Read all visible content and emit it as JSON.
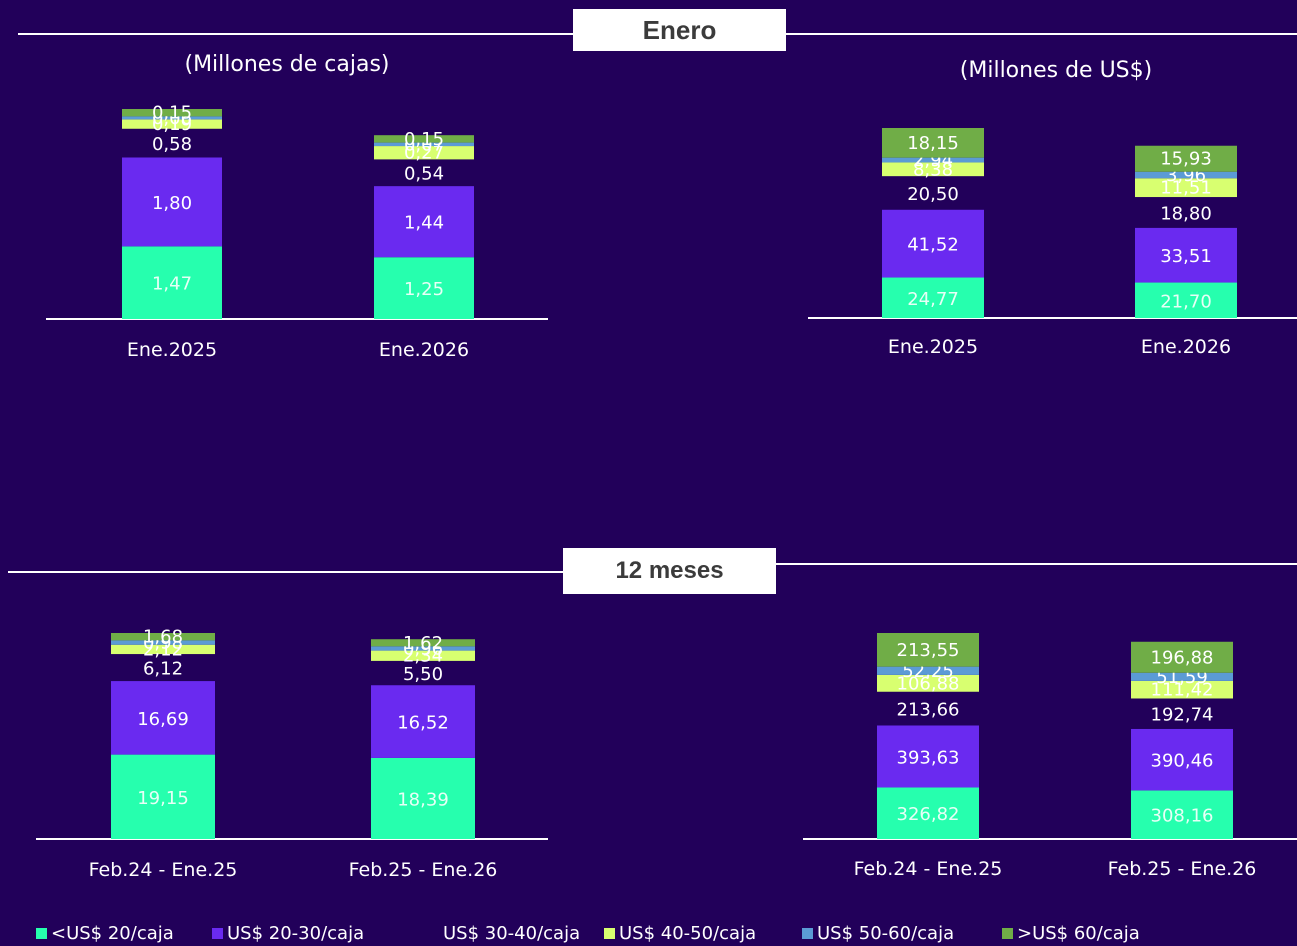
{
  "sections": {
    "enero": "Enero",
    "doce_meses": "12 meses"
  },
  "subtitles": {
    "left": "(Millones de cajas)",
    "right": "(Millones de US$)"
  },
  "colors": {
    "lt20": "#26ffae",
    "s20_30": "#6a2af0",
    "s30_40": "#22005a",
    "s40_50": "#d8ff70",
    "s50_60": "#5b9bd5",
    "gt60": "#70ad47"
  },
  "legend": [
    {
      "key": "lt20",
      "label": "<US$ 20/caja"
    },
    {
      "key": "s20_30",
      "label": "US$ 20-30/caja"
    },
    {
      "key": "s30_40",
      "label": "US$ 30-40/caja"
    },
    {
      "key": "s40_50",
      "label": "US$ 40-50/caja"
    },
    {
      "key": "s50_60",
      "label": "US$ 50-60/caja"
    },
    {
      "key": "gt60",
      "label": ">US$ 60/caja"
    }
  ],
  "chart_data": [
    {
      "type": "bar",
      "stacked": true,
      "section": "Enero",
      "subtitle": "(Millones de cajas)",
      "categories": [
        "Ene.2025",
        "Ene.2026"
      ],
      "series": [
        {
          "name": "<US$ 20/caja",
          "values": [
            1.47,
            1.25
          ],
          "labels": [
            "1,47",
            "1,25"
          ]
        },
        {
          "name": "US$ 20-30/caja",
          "values": [
            1.8,
            1.44
          ],
          "labels": [
            "1,80",
            "1,44"
          ]
        },
        {
          "name": "US$ 30-40/caja",
          "values": [
            0.58,
            0.54
          ],
          "labels": [
            "0,58",
            "0,54"
          ]
        },
        {
          "name": "US$ 40-50/caja",
          "values": [
            0.19,
            0.27
          ],
          "labels": [
            "0,19",
            "0,27"
          ]
        },
        {
          "name": "US$ 50-60/caja",
          "values": [
            0.06,
            0.07
          ],
          "labels": [
            "0,06",
            "0,07"
          ]
        },
        {
          "name": ">US$ 60/caja",
          "values": [
            0.15,
            0.15
          ],
          "labels": [
            "0,15",
            "0,15"
          ]
        }
      ]
    },
    {
      "type": "bar",
      "stacked": true,
      "section": "Enero",
      "subtitle": "(Millones de US$)",
      "categories": [
        "Ene.2025",
        "Ene.2026"
      ],
      "series": [
        {
          "name": "<US$ 20/caja",
          "values": [
            24.77,
            21.7
          ],
          "labels": [
            "24,77",
            "21,70"
          ]
        },
        {
          "name": "US$ 20-30/caja",
          "values": [
            41.52,
            33.51
          ],
          "labels": [
            "41,52",
            "33,51"
          ]
        },
        {
          "name": "US$ 30-40/caja",
          "values": [
            20.5,
            18.8
          ],
          "labels": [
            "20,50",
            "18,80"
          ]
        },
        {
          "name": "US$ 40-50/caja",
          "values": [
            8.38,
            11.51
          ],
          "labels": [
            "8,38",
            "11,51"
          ]
        },
        {
          "name": "US$ 50-60/caja",
          "values": [
            2.94,
            3.96
          ],
          "labels": [
            "2,94",
            "3,96"
          ]
        },
        {
          "name": ">US$ 60/caja",
          "values": [
            18.15,
            15.93
          ],
          "labels": [
            "18,15",
            "15,93"
          ]
        }
      ]
    },
    {
      "type": "bar",
      "stacked": true,
      "section": "12 meses",
      "subtitle": "",
      "categories": [
        "Feb.24 - Ene.25",
        "Feb.25 - Ene.26"
      ],
      "series": [
        {
          "name": "<US$ 20/caja",
          "values": [
            19.15,
            18.39
          ],
          "labels": [
            "19,15",
            "18,39"
          ]
        },
        {
          "name": "US$ 20-30/caja",
          "values": [
            16.69,
            16.52
          ],
          "labels": [
            "16,69",
            "16,52"
          ]
        },
        {
          "name": "US$ 30-40/caja",
          "values": [
            6.12,
            5.5
          ],
          "labels": [
            "6,12",
            "5,50"
          ]
        },
        {
          "name": "US$ 40-50/caja",
          "values": [
            2.12,
            2.34
          ],
          "labels": [
            "2,12",
            "2,34"
          ]
        },
        {
          "name": "US$ 50-60/caja",
          "values": [
            0.98,
            0.96
          ],
          "labels": [
            "0,98",
            "0,96"
          ]
        },
        {
          "name": ">US$ 60/caja",
          "values": [
            1.68,
            1.62
          ],
          "labels": [
            "1,68",
            "1,62"
          ]
        }
      ]
    },
    {
      "type": "bar",
      "stacked": true,
      "section": "12 meses",
      "subtitle": "",
      "categories": [
        "Feb.24 - Ene.25",
        "Feb.25 - Ene.26"
      ],
      "series": [
        {
          "name": "<US$ 20/caja",
          "values": [
            326.82,
            308.16
          ],
          "labels": [
            "326,82",
            "308,16"
          ]
        },
        {
          "name": "US$ 20-30/caja",
          "values": [
            393.63,
            390.46
          ],
          "labels": [
            "393,63",
            "390,46"
          ]
        },
        {
          "name": "US$ 30-40/caja",
          "values": [
            213.66,
            192.74
          ],
          "labels": [
            "213,66",
            "192,74"
          ]
        },
        {
          "name": "US$ 40-50/caja",
          "values": [
            106.88,
            111.42
          ],
          "labels": [
            "106,88",
            "111,42"
          ]
        },
        {
          "name": "US$ 50-60/caja",
          "values": [
            52.25,
            51.59
          ],
          "labels": [
            "52,25",
            "51,59"
          ]
        },
        {
          "name": ">US$ 60/caja",
          "values": [
            213.55,
            196.88
          ],
          "labels": [
            "213,55",
            "196,88"
          ]
        }
      ]
    }
  ]
}
